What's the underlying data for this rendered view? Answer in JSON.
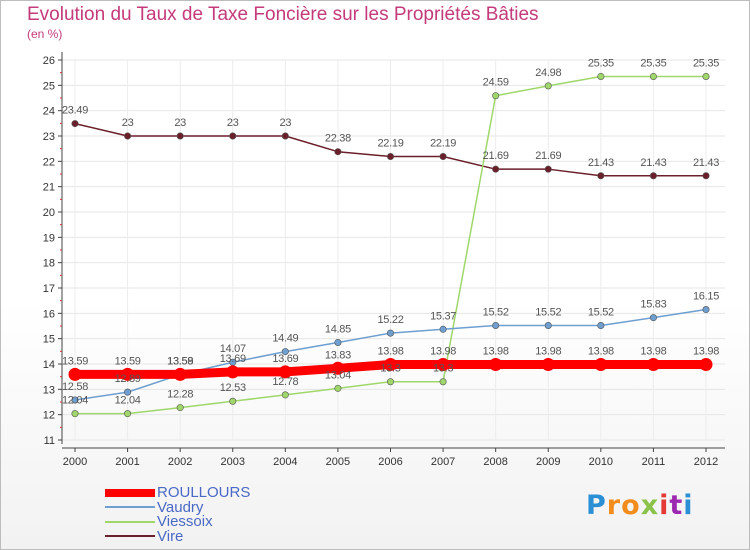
{
  "header": {
    "title": "Evolution du Taux de Taxe Foncière sur les Propriétés Bâties",
    "subtitle": "(en %)"
  },
  "logo": {
    "text": "Proxiti",
    "letters": [
      "P",
      "r",
      "o",
      "x",
      "i",
      "t",
      "i"
    ],
    "colors": [
      "#2b8fd6",
      "#f28c1b",
      "#f28c1b",
      "#8bc34a",
      "#e53935",
      "#9c27b0",
      "#2b8fd6"
    ]
  },
  "chart_data": {
    "type": "line",
    "title": "Evolution du Taux de Taxe Foncière sur les Propriétés Bâties",
    "ylabel": "(en %)",
    "xlabel": "",
    "ylim": [
      11,
      26
    ],
    "yticks": [
      "11",
      "12",
      "13",
      "14",
      "15",
      "16",
      "17",
      "18",
      "19",
      "20",
      "21",
      "22",
      "23",
      "24",
      "25",
      "26"
    ],
    "categories": [
      "2000",
      "2001",
      "2002",
      "2003",
      "2004",
      "2005",
      "2006",
      "2007",
      "2008",
      "2009",
      "2010",
      "2011",
      "2012"
    ],
    "series": [
      {
        "name": "ROULLOURS",
        "color": "#ff0000",
        "label_color": "#4a69c6",
        "values": [
          13.59,
          13.59,
          13.59,
          13.69,
          13.69,
          13.83,
          13.98,
          13.98,
          13.98,
          13.98,
          13.98,
          13.98,
          13.98
        ]
      },
      {
        "name": "Vaudry",
        "color": "#6e9fd0",
        "label_color": "#4a69c6",
        "values": [
          12.58,
          12.89,
          13.58,
          14.07,
          14.49,
          14.85,
          15.22,
          15.37,
          15.52,
          15.52,
          15.52,
          15.83,
          16.15
        ]
      },
      {
        "name": "Viessoix",
        "color": "#9fd76a",
        "label_color": "#4a69c6",
        "values": [
          12.04,
          12.04,
          12.28,
          12.53,
          12.78,
          13.04,
          13.3,
          13.3,
          24.59,
          24.98,
          25.35,
          25.35,
          25.35
        ]
      },
      {
        "name": "Vire",
        "color": "#6b1f2a",
        "label_color": "#4a69c6",
        "values": [
          23.49,
          23,
          23,
          23,
          23,
          22.38,
          22.19,
          22.19,
          21.69,
          21.69,
          21.43,
          21.43,
          21.43
        ]
      }
    ],
    "legend_position": "bottom-left"
  }
}
